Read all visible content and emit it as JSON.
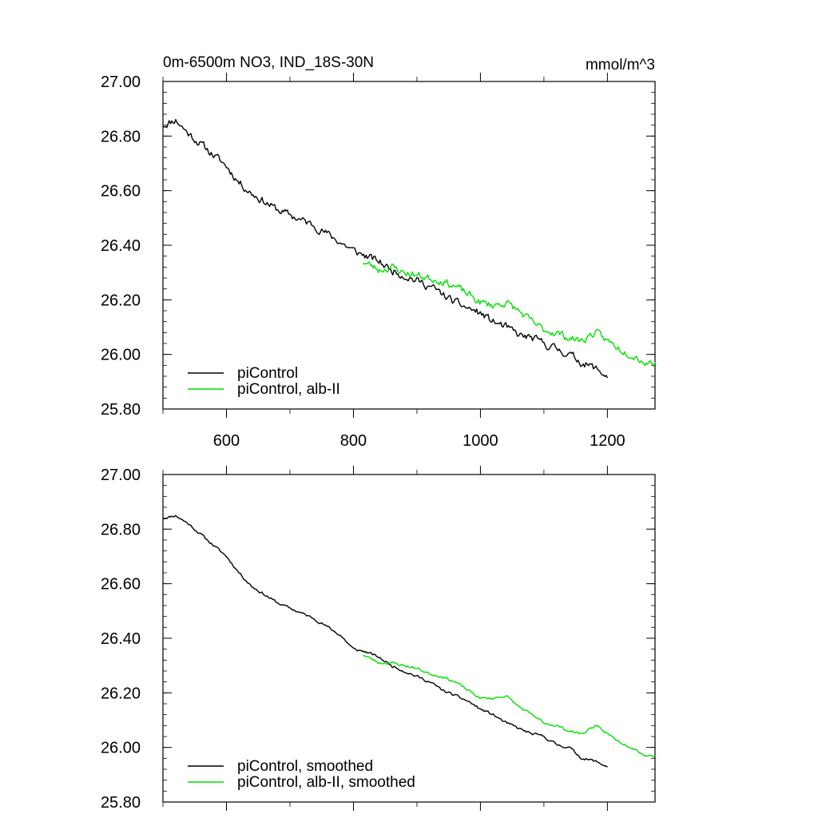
{
  "chart_data": [
    {
      "type": "line",
      "title_left": "0m-6500m NO3, IND_18S-30N",
      "title_right": "mmol/m^3",
      "xlim": [
        500,
        1275
      ],
      "ylim": [
        25.8,
        27.0
      ],
      "xticks": [
        600,
        800,
        1000,
        1200
      ],
      "xtick_labels": [
        "600",
        "800",
        "1000",
        "1200"
      ],
      "yticks": [
        25.8,
        26.0,
        26.2,
        26.4,
        26.6,
        26.8,
        27.0
      ],
      "ytick_labels": [
        "25.80",
        "26.00",
        "26.20",
        "26.40",
        "26.60",
        "26.80",
        "27.00"
      ],
      "legend_position": "bottom-left",
      "series": [
        {
          "name": "piControl",
          "color": "#000000",
          "noise": 0.012,
          "seed": 11,
          "points": [
            [
              500,
              26.84
            ],
            [
              520,
              26.86
            ],
            [
              540,
              26.81
            ],
            [
              560,
              26.77
            ],
            [
              580,
              26.73
            ],
            [
              600,
              26.69
            ],
            [
              620,
              26.63
            ],
            [
              640,
              26.59
            ],
            [
              660,
              26.56
            ],
            [
              680,
              26.53
            ],
            [
              700,
              26.51
            ],
            [
              720,
              26.49
            ],
            [
              740,
              26.47
            ],
            [
              760,
              26.44
            ],
            [
              780,
              26.41
            ],
            [
              800,
              26.38
            ],
            [
              820,
              26.36
            ],
            [
              840,
              26.34
            ],
            [
              860,
              26.31
            ],
            [
              880,
              26.29
            ],
            [
              900,
              26.27
            ],
            [
              920,
              26.25
            ],
            [
              940,
              26.22
            ],
            [
              960,
              26.19
            ],
            [
              980,
              26.17
            ],
            [
              1000,
              26.15
            ],
            [
              1020,
              26.12
            ],
            [
              1040,
              26.1
            ],
            [
              1060,
              26.07
            ],
            [
              1080,
              26.06
            ],
            [
              1100,
              26.04
            ],
            [
              1120,
              26.02
            ],
            [
              1140,
              26.0
            ],
            [
              1160,
              25.97
            ],
            [
              1180,
              25.95
            ],
            [
              1200,
              25.92
            ]
          ]
        },
        {
          "name": "piControl, alb-II",
          "color": "#00e000",
          "noise": 0.012,
          "seed": 23,
          "points": [
            [
              815,
              26.34
            ],
            [
              840,
              26.31
            ],
            [
              860,
              26.32
            ],
            [
              880,
              26.3
            ],
            [
              900,
              26.29
            ],
            [
              920,
              26.28
            ],
            [
              940,
              26.27
            ],
            [
              960,
              26.25
            ],
            [
              980,
              26.22
            ],
            [
              1000,
              26.19
            ],
            [
              1020,
              26.18
            ],
            [
              1040,
              26.19
            ],
            [
              1060,
              26.16
            ],
            [
              1080,
              26.12
            ],
            [
              1100,
              26.09
            ],
            [
              1120,
              26.08
            ],
            [
              1140,
              26.06
            ],
            [
              1160,
              26.05
            ],
            [
              1180,
              26.08
            ],
            [
              1200,
              26.05
            ],
            [
              1220,
              26.02
            ],
            [
              1240,
              26.0
            ],
            [
              1260,
              25.97
            ],
            [
              1275,
              25.97
            ]
          ]
        }
      ]
    },
    {
      "type": "line",
      "xlim": [
        500,
        1275
      ],
      "ylim": [
        25.8,
        27.0
      ],
      "xticks": [
        600,
        800,
        1000,
        1200
      ],
      "yticks": [
        25.8,
        26.0,
        26.2,
        26.4,
        26.6,
        26.8,
        27.0
      ],
      "ytick_labels": [
        "25.80",
        "26.00",
        "26.20",
        "26.40",
        "26.60",
        "26.80",
        "27.00"
      ],
      "legend_position": "bottom-left",
      "series": [
        {
          "name": "piControl, smoothed",
          "color": "#000000",
          "noise": 0.004,
          "seed": 11,
          "points": [
            [
              500,
              26.84
            ],
            [
              520,
              26.85
            ],
            [
              540,
              26.82
            ],
            [
              560,
              26.78
            ],
            [
              580,
              26.74
            ],
            [
              600,
              26.7
            ],
            [
              620,
              26.64
            ],
            [
              640,
              26.59
            ],
            [
              660,
              26.56
            ],
            [
              680,
              26.53
            ],
            [
              700,
              26.51
            ],
            [
              720,
              26.49
            ],
            [
              740,
              26.47
            ],
            [
              760,
              26.44
            ],
            [
              780,
              26.41
            ],
            [
              800,
              26.36
            ],
            [
              820,
              26.35
            ],
            [
              840,
              26.33
            ],
            [
              860,
              26.3
            ],
            [
              880,
              26.28
            ],
            [
              900,
              26.26
            ],
            [
              920,
              26.24
            ],
            [
              940,
              26.21
            ],
            [
              960,
              26.19
            ],
            [
              980,
              26.17
            ],
            [
              1000,
              26.14
            ],
            [
              1020,
              26.12
            ],
            [
              1040,
              26.09
            ],
            [
              1060,
              26.07
            ],
            [
              1080,
              26.05
            ],
            [
              1100,
              26.04
            ],
            [
              1120,
              26.01
            ],
            [
              1140,
              26.0
            ],
            [
              1160,
              25.96
            ],
            [
              1180,
              25.95
            ],
            [
              1200,
              25.93
            ]
          ]
        },
        {
          "name": "piControl, alb-II, smoothed",
          "color": "#00e000",
          "noise": 0.004,
          "seed": 23,
          "points": [
            [
              815,
              26.34
            ],
            [
              840,
              26.31
            ],
            [
              860,
              26.31
            ],
            [
              880,
              26.3
            ],
            [
              900,
              26.29
            ],
            [
              920,
              26.27
            ],
            [
              940,
              26.26
            ],
            [
              960,
              26.24
            ],
            [
              980,
              26.21
            ],
            [
              1000,
              26.18
            ],
            [
              1020,
              26.18
            ],
            [
              1040,
              26.19
            ],
            [
              1060,
              26.15
            ],
            [
              1080,
              26.12
            ],
            [
              1100,
              26.09
            ],
            [
              1120,
              26.08
            ],
            [
              1140,
              26.06
            ],
            [
              1160,
              26.05
            ],
            [
              1180,
              26.08
            ],
            [
              1200,
              26.05
            ],
            [
              1220,
              26.02
            ],
            [
              1240,
              26.0
            ],
            [
              1260,
              25.97
            ],
            [
              1275,
              25.97
            ]
          ]
        }
      ]
    }
  ]
}
